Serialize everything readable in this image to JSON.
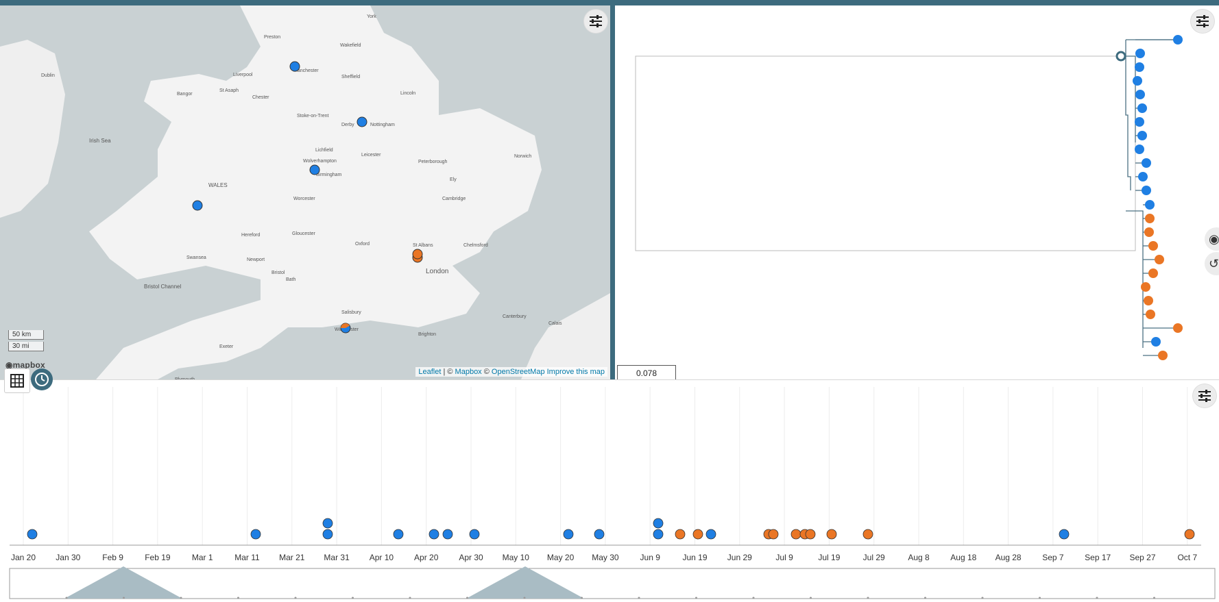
{
  "colors": {
    "accent": "#3d6b7e",
    "blue": "#1f7fe3",
    "orange": "#ea7625"
  },
  "map": {
    "places": [
      {
        "name": "Dublin"
      },
      {
        "name": "Preston"
      },
      {
        "name": "York"
      },
      {
        "name": "Wakefield"
      },
      {
        "name": "Liverpool"
      },
      {
        "name": "Manchester"
      },
      {
        "name": "Sheffield"
      },
      {
        "name": "Bangor"
      },
      {
        "name": "St Asaph"
      },
      {
        "name": "Chester"
      },
      {
        "name": "Lincoln"
      },
      {
        "name": "Irish Sea"
      },
      {
        "name": "Stoke-on-Trent"
      },
      {
        "name": "Derby"
      },
      {
        "name": "Nottingham"
      },
      {
        "name": "Lichfield"
      },
      {
        "name": "Leicester"
      },
      {
        "name": "Peterborough"
      },
      {
        "name": "Norwich"
      },
      {
        "name": "Wolverhampton"
      },
      {
        "name": "Birmingham"
      },
      {
        "name": "Ely"
      },
      {
        "name": "WALES"
      },
      {
        "name": "Worcester"
      },
      {
        "name": "Cambridge"
      },
      {
        "name": "Hereford"
      },
      {
        "name": "Gloucester"
      },
      {
        "name": "Oxford"
      },
      {
        "name": "St Albans"
      },
      {
        "name": "Chelmsford"
      },
      {
        "name": "Newport"
      },
      {
        "name": "Swansea"
      },
      {
        "name": "Bristol"
      },
      {
        "name": "Bath"
      },
      {
        "name": "London"
      },
      {
        "name": "Bristol Channel"
      },
      {
        "name": "Canterbury"
      },
      {
        "name": "Salisbury"
      },
      {
        "name": "Winchester"
      },
      {
        "name": "Exeter"
      },
      {
        "name": "Brighton"
      },
      {
        "name": "Plymouth"
      },
      {
        "name": "Calais"
      }
    ],
    "scale_km": "50 km",
    "scale_mi": "30 mi",
    "logo": "mapbox",
    "attribution": {
      "leaflet": "Leaflet",
      "sep": " | © ",
      "mapbox": "Mapbox",
      "copy": " © ",
      "osm": "OpenStreetMap",
      "improve": "Improve this map"
    }
  },
  "tree": {
    "scale_label": "0.078"
  },
  "timeline": {
    "ticks": [
      "Jan 20",
      "Jan 30",
      "Feb 9",
      "Feb 19",
      "Mar 1",
      "Mar 11",
      "Mar 21",
      "Mar 31",
      "Apr 10",
      "Apr 20",
      "Apr 30",
      "May 10",
      "May 20",
      "May 30",
      "Jun 9",
      "Jun 19",
      "Jun 29",
      "Jul 9",
      "Jul 19",
      "Jul 29",
      "Aug 8",
      "Aug 18",
      "Aug 28",
      "Sep 7",
      "Sep 17",
      "Sep 27",
      "Oct 7"
    ]
  }
}
